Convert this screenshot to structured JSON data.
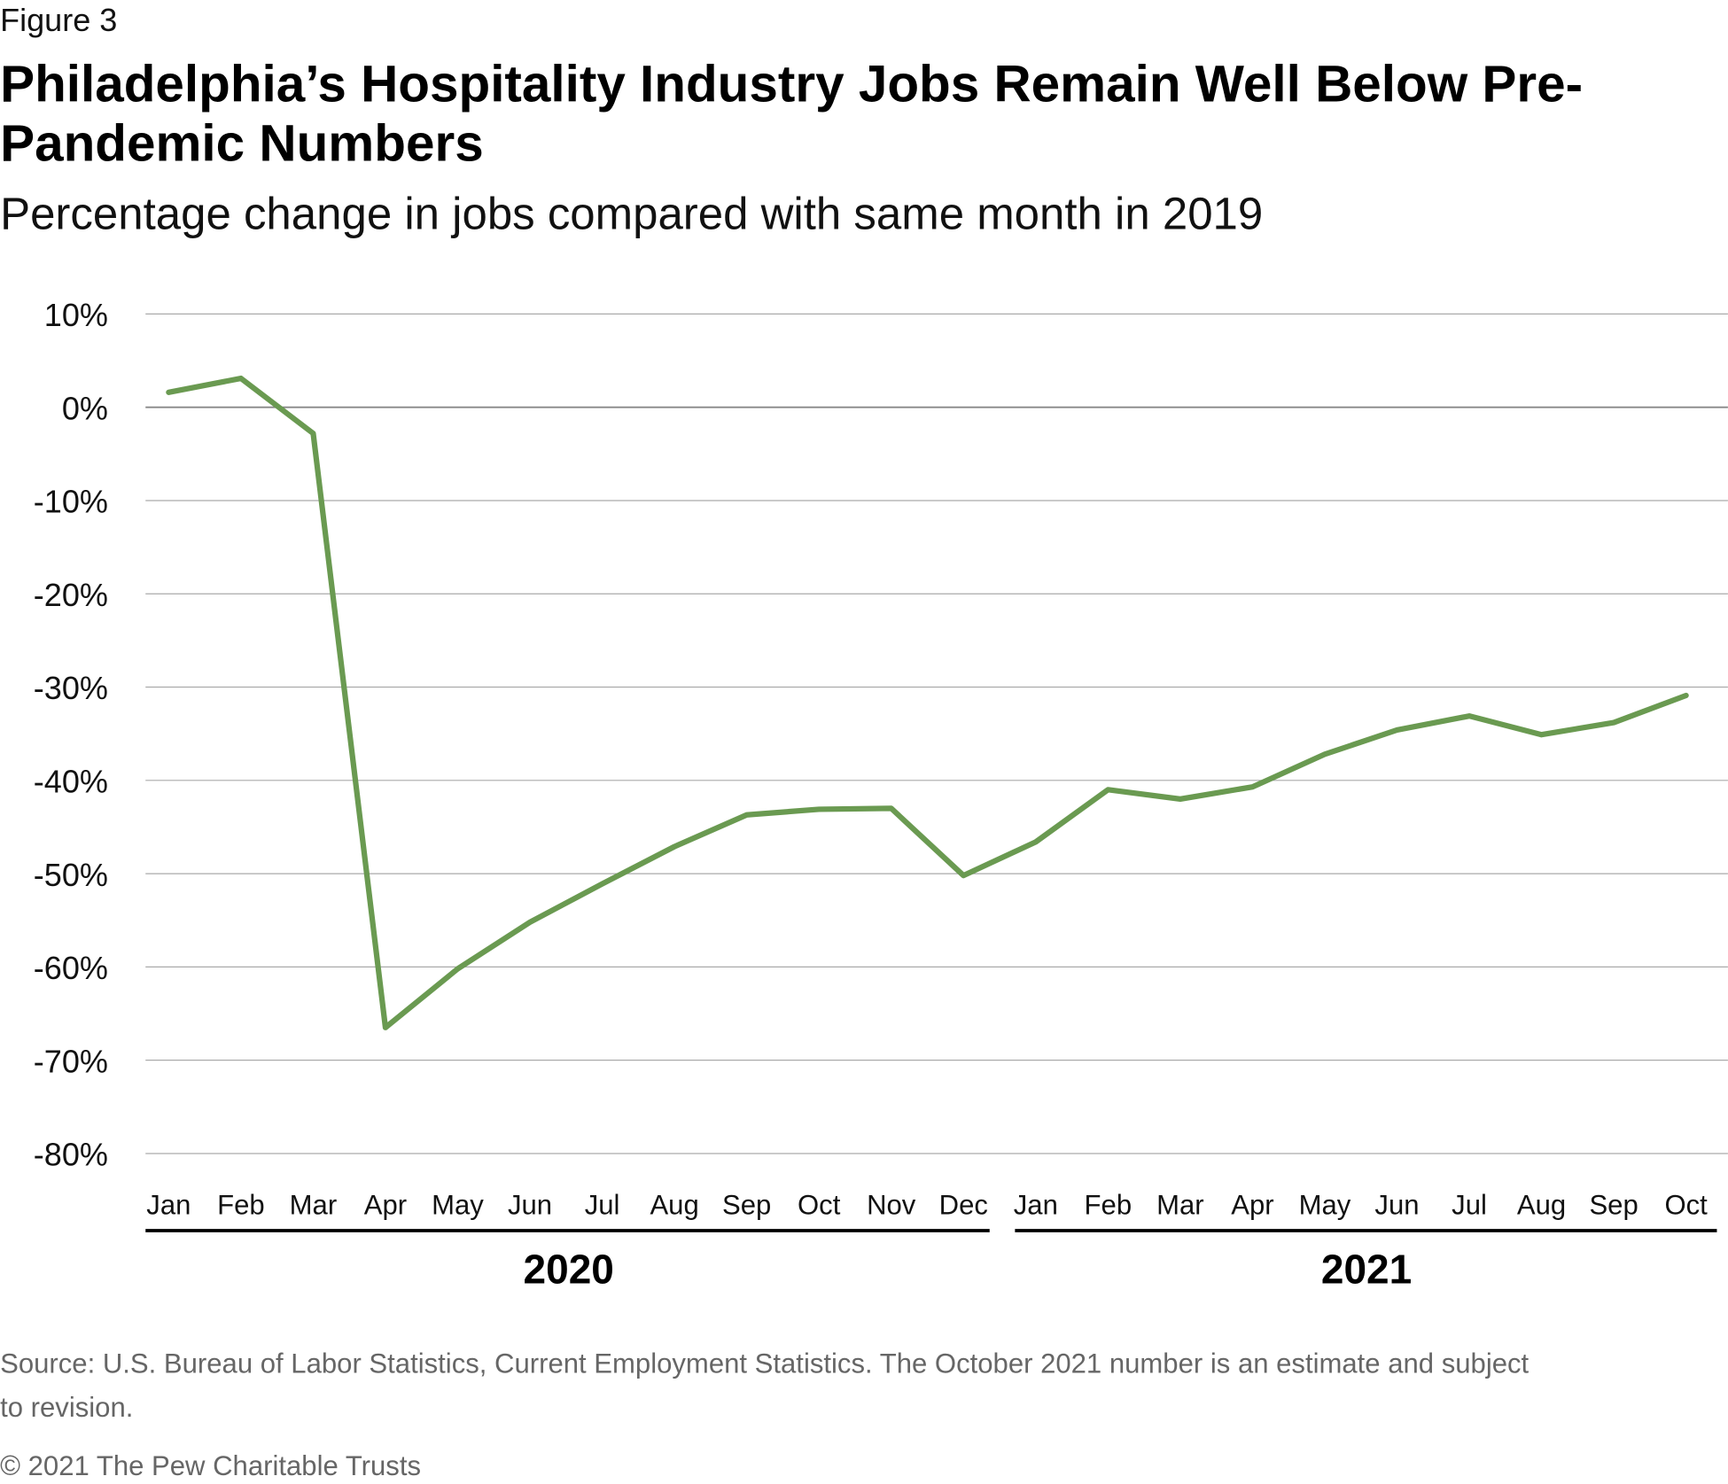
{
  "figure_label": "Figure 3",
  "title_line1": "Philadelphia’s Hospitality Industry Jobs Remain Well Below Pre-",
  "title_line2": "Pandemic Numbers",
  "subtitle": "Percentage change in jobs compared with same month in 2019",
  "source_line1": "Source: U.S. Bureau of Labor Statistics, Current Employment Statistics. The October 2021 number is an estimate and subject",
  "source_line2": "to revision.",
  "copyright": "© 2021 The Pew Charitable Trusts",
  "chart_data": {
    "type": "line",
    "title": "Philadelphia’s Hospitality Industry Jobs Remain Well Below Pre-Pandemic Numbers",
    "subtitle": "Percentage change in jobs compared with same month in 2019",
    "categories": [
      "Jan",
      "Feb",
      "Mar",
      "Apr",
      "May",
      "Jun",
      "Jul",
      "Aug",
      "Sep",
      "Oct",
      "Nov",
      "Dec",
      "Jan",
      "Feb",
      "Mar",
      "Apr",
      "May",
      "Jun",
      "Jul",
      "Aug",
      "Sep",
      "Oct"
    ],
    "year_groups": [
      {
        "label": "2020",
        "count": 12
      },
      {
        "label": "2021",
        "count": 10
      }
    ],
    "values": [
      1.6,
      3.1,
      -2.8,
      -66.5,
      -60.2,
      -55.2,
      -51.1,
      -47.1,
      -43.7,
      -43.1,
      -43.0,
      -50.2,
      -46.6,
      -41.0,
      -42.0,
      -40.7,
      -37.2,
      -34.6,
      -33.1,
      -35.1,
      -33.8,
      -30.9
    ],
    "ylim": [
      -80,
      10
    ],
    "yticks": [
      10,
      0,
      -10,
      -20,
      -30,
      -40,
      -50,
      -60,
      -70,
      -80
    ],
    "ytick_labels": [
      "10%",
      "0%",
      "-10%",
      "-20%",
      "-30%",
      "-40%",
      "-50%",
      "-60%",
      "-70%",
      "-80%"
    ],
    "grid": true,
    "legend": "none",
    "line_color": "#6a9a51"
  }
}
